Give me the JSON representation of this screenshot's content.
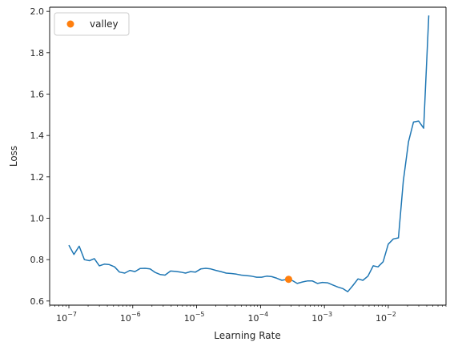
{
  "chart_data": {
    "type": "line",
    "xlabel": "Learning Rate",
    "ylabel": "Loss",
    "xscale": "log",
    "xlim": [
      5e-08,
      0.08
    ],
    "ylim": [
      0.58,
      2.02
    ],
    "grid": false,
    "legend": {
      "placement": "top-left",
      "entries": [
        {
          "label": "valley",
          "color": "#ff7f0e",
          "marker": "circle"
        }
      ]
    },
    "xticks": [
      {
        "base": "10",
        "exp": "−7",
        "value": 1e-07
      },
      {
        "base": "10",
        "exp": "−6",
        "value": 1e-06
      },
      {
        "base": "10",
        "exp": "−5",
        "value": 1e-05
      },
      {
        "base": "10",
        "exp": "−4",
        "value": 0.0001
      },
      {
        "base": "10",
        "exp": "−3",
        "value": 0.001
      },
      {
        "base": "10",
        "exp": "−2",
        "value": 0.01
      }
    ],
    "yticks": [
      0.6,
      0.8,
      1.0,
      1.2,
      1.4,
      1.6,
      1.8,
      2.0
    ],
    "ytick_labels": [
      "0.6",
      "0.8",
      "1.0",
      "1.2",
      "1.4",
      "1.6",
      "1.8",
      "2.0"
    ],
    "series": [
      {
        "color": "#1f77b4",
        "x": [
          1e-07,
          1.2e-07,
          1.45e-07,
          1.75e-07,
          2.1e-07,
          2.5e-07,
          3e-07,
          3.6e-07,
          4.3e-07,
          5.2e-07,
          6.2e-07,
          7.5e-07,
          9e-07,
          1.08e-06,
          1.3e-06,
          1.56e-06,
          1.87e-06,
          2.25e-06,
          2.7e-06,
          3.2e-06,
          3.9e-06,
          4.7e-06,
          5.6e-06,
          6.7e-06,
          8e-06,
          9.6e-06,
          1.16e-05,
          1.39e-05,
          1.67e-05,
          2e-05,
          2.4e-05,
          2.9e-05,
          3.5e-05,
          4.2e-05,
          5e-05,
          6e-05,
          7.2e-05,
          8.7e-05,
          0.000104,
          0.000125,
          0.00015,
          0.00018,
          0.000216,
          0.00026,
          0.00031,
          0.000375,
          0.00045,
          0.00054,
          0.00065,
          0.00078,
          0.00093,
          0.00112,
          0.00134,
          0.00161,
          0.00194,
          0.00232,
          0.00279,
          0.00335,
          0.004,
          0.0048,
          0.0058,
          0.0069,
          0.0083,
          0.01,
          0.012,
          0.0144,
          0.0172,
          0.0207,
          0.0248,
          0.0298,
          0.0358,
          0.043
        ],
        "y": [
          0.87,
          0.825,
          0.865,
          0.8,
          0.795,
          0.805,
          0.77,
          0.778,
          0.776,
          0.765,
          0.74,
          0.735,
          0.748,
          0.742,
          0.757,
          0.758,
          0.755,
          0.738,
          0.728,
          0.725,
          0.745,
          0.743,
          0.74,
          0.735,
          0.742,
          0.74,
          0.755,
          0.758,
          0.755,
          0.748,
          0.742,
          0.735,
          0.733,
          0.73,
          0.725,
          0.723,
          0.72,
          0.715,
          0.715,
          0.72,
          0.718,
          0.71,
          0.7,
          0.705,
          0.7,
          0.685,
          0.692,
          0.697,
          0.697,
          0.685,
          0.69,
          0.688,
          0.678,
          0.668,
          0.66,
          0.645,
          0.675,
          0.707,
          0.7,
          0.72,
          0.77,
          0.765,
          0.79,
          0.875,
          0.9,
          0.905,
          1.18,
          1.37,
          1.465,
          1.47,
          1.435,
          1.98
        ]
      }
    ],
    "points": [
      {
        "label": "valley",
        "color": "#ff7f0e",
        "x": 0.000275,
        "y": 0.705
      }
    ]
  }
}
